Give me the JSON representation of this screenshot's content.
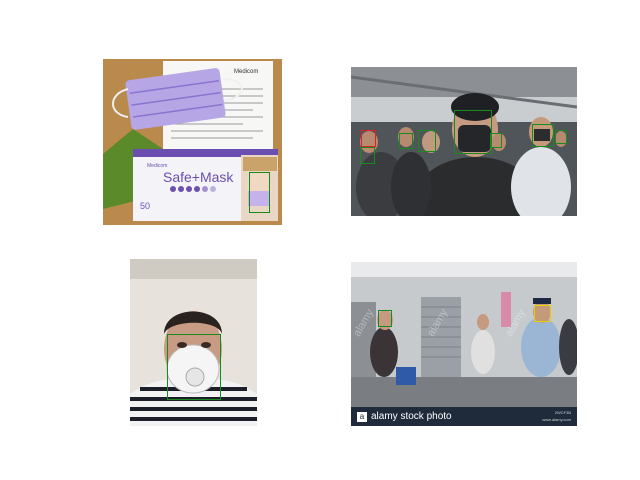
{
  "colors": {
    "mask_box": "#1a8a1a",
    "no_mask_box": "#e02020",
    "incorrect_mask_box": "#e8d000"
  },
  "panels": [
    {
      "id": "top-left",
      "printed_text": {
        "pack_brand_top": "Medicom",
        "pack_product": "Safe+Mask",
        "pack_count": "50",
        "leaflet_brand": "Medicom"
      }
    },
    {
      "id": "top-right"
    },
    {
      "id": "bottom-left"
    },
    {
      "id": "bottom-right",
      "watermark_text": "alamy",
      "footer_text": "alamy stock photo",
      "footer_id": "2WCF3B",
      "footer_url": "www.alamy.com"
    }
  ]
}
